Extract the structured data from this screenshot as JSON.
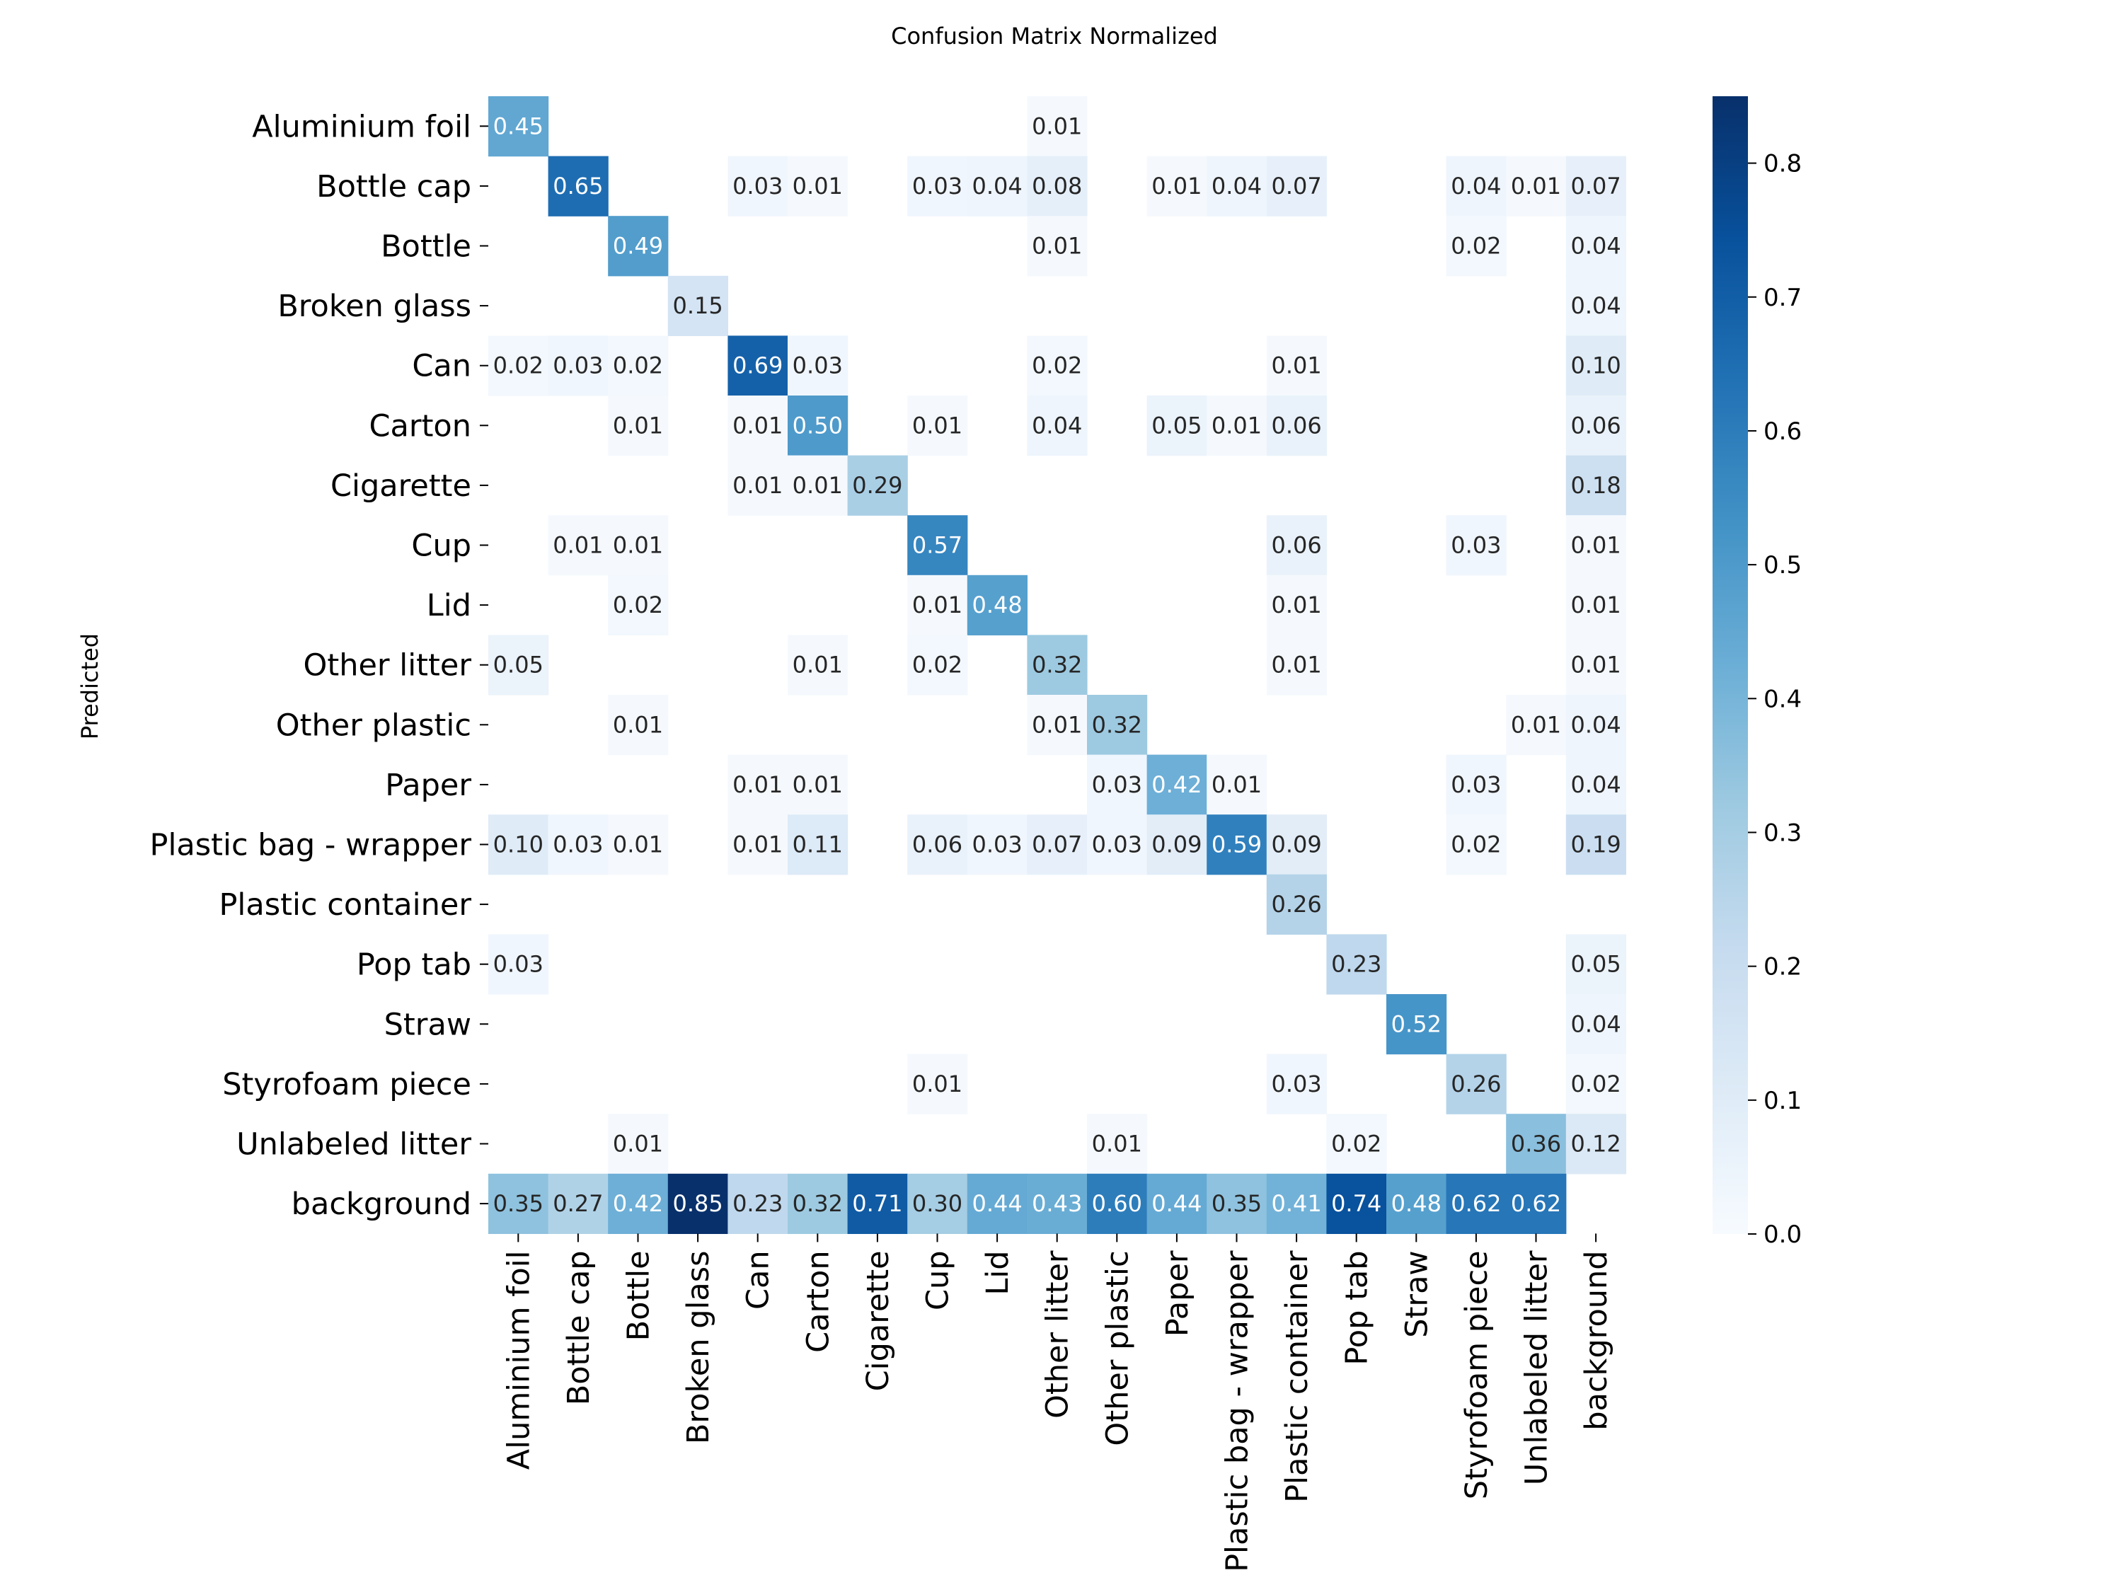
{
  "chart_data": {
    "type": "heatmap",
    "title": "Confusion Matrix Normalized",
    "xlabel": "",
    "ylabel": "Predicted",
    "labels": [
      "Aluminium foil",
      "Bottle cap",
      "Bottle",
      "Broken glass",
      "Can",
      "Carton",
      "Cigarette",
      "Cup",
      "Lid",
      "Other litter",
      "Other plastic",
      "Paper",
      "Plastic bag - wrapper",
      "Plastic container",
      "Pop tab",
      "Straw",
      "Styrofoam piece",
      "Unlabeled litter",
      "background"
    ],
    "cells": [
      {
        "r": 0,
        "c": 0,
        "v": 0.45
      },
      {
        "r": 0,
        "c": 9,
        "v": 0.01
      },
      {
        "r": 1,
        "c": 1,
        "v": 0.65
      },
      {
        "r": 1,
        "c": 4,
        "v": 0.03
      },
      {
        "r": 1,
        "c": 5,
        "v": 0.01
      },
      {
        "r": 1,
        "c": 7,
        "v": 0.03
      },
      {
        "r": 1,
        "c": 8,
        "v": 0.04
      },
      {
        "r": 1,
        "c": 9,
        "v": 0.08
      },
      {
        "r": 1,
        "c": 11,
        "v": 0.01
      },
      {
        "r": 1,
        "c": 12,
        "v": 0.04
      },
      {
        "r": 1,
        "c": 13,
        "v": 0.07
      },
      {
        "r": 1,
        "c": 16,
        "v": 0.04
      },
      {
        "r": 1,
        "c": 17,
        "v": 0.01
      },
      {
        "r": 1,
        "c": 18,
        "v": 0.07
      },
      {
        "r": 2,
        "c": 2,
        "v": 0.49
      },
      {
        "r": 2,
        "c": 9,
        "v": 0.01
      },
      {
        "r": 2,
        "c": 16,
        "v": 0.02
      },
      {
        "r": 2,
        "c": 18,
        "v": 0.04
      },
      {
        "r": 3,
        "c": 3,
        "v": 0.15
      },
      {
        "r": 3,
        "c": 18,
        "v": 0.04
      },
      {
        "r": 4,
        "c": 0,
        "v": 0.02
      },
      {
        "r": 4,
        "c": 1,
        "v": 0.03
      },
      {
        "r": 4,
        "c": 2,
        "v": 0.02
      },
      {
        "r": 4,
        "c": 4,
        "v": 0.69
      },
      {
        "r": 4,
        "c": 5,
        "v": 0.03
      },
      {
        "r": 4,
        "c": 9,
        "v": 0.02
      },
      {
        "r": 4,
        "c": 13,
        "v": 0.01
      },
      {
        "r": 4,
        "c": 18,
        "v": 0.1
      },
      {
        "r": 5,
        "c": 2,
        "v": 0.01
      },
      {
        "r": 5,
        "c": 4,
        "v": 0.01
      },
      {
        "r": 5,
        "c": 5,
        "v": 0.5
      },
      {
        "r": 5,
        "c": 7,
        "v": 0.01
      },
      {
        "r": 5,
        "c": 9,
        "v": 0.04
      },
      {
        "r": 5,
        "c": 11,
        "v": 0.05
      },
      {
        "r": 5,
        "c": 12,
        "v": 0.01
      },
      {
        "r": 5,
        "c": 13,
        "v": 0.06
      },
      {
        "r": 5,
        "c": 18,
        "v": 0.06
      },
      {
        "r": 6,
        "c": 4,
        "v": 0.01
      },
      {
        "r": 6,
        "c": 5,
        "v": 0.01
      },
      {
        "r": 6,
        "c": 6,
        "v": 0.29
      },
      {
        "r": 6,
        "c": 18,
        "v": 0.18
      },
      {
        "r": 7,
        "c": 1,
        "v": 0.01
      },
      {
        "r": 7,
        "c": 2,
        "v": 0.01
      },
      {
        "r": 7,
        "c": 7,
        "v": 0.57
      },
      {
        "r": 7,
        "c": 13,
        "v": 0.06
      },
      {
        "r": 7,
        "c": 16,
        "v": 0.03
      },
      {
        "r": 7,
        "c": 18,
        "v": 0.01
      },
      {
        "r": 8,
        "c": 2,
        "v": 0.02
      },
      {
        "r": 8,
        "c": 7,
        "v": 0.01
      },
      {
        "r": 8,
        "c": 8,
        "v": 0.48
      },
      {
        "r": 8,
        "c": 13,
        "v": 0.01
      },
      {
        "r": 8,
        "c": 18,
        "v": 0.01
      },
      {
        "r": 9,
        "c": 0,
        "v": 0.05
      },
      {
        "r": 9,
        "c": 5,
        "v": 0.01
      },
      {
        "r": 9,
        "c": 7,
        "v": 0.02
      },
      {
        "r": 9,
        "c": 9,
        "v": 0.32
      },
      {
        "r": 9,
        "c": 13,
        "v": 0.01
      },
      {
        "r": 9,
        "c": 18,
        "v": 0.01
      },
      {
        "r": 10,
        "c": 2,
        "v": 0.01
      },
      {
        "r": 10,
        "c": 9,
        "v": 0.01
      },
      {
        "r": 10,
        "c": 10,
        "v": 0.32
      },
      {
        "r": 10,
        "c": 17,
        "v": 0.01
      },
      {
        "r": 10,
        "c": 18,
        "v": 0.04
      },
      {
        "r": 11,
        "c": 4,
        "v": 0.01
      },
      {
        "r": 11,
        "c": 5,
        "v": 0.01
      },
      {
        "r": 11,
        "c": 10,
        "v": 0.03
      },
      {
        "r": 11,
        "c": 11,
        "v": 0.42
      },
      {
        "r": 11,
        "c": 12,
        "v": 0.01
      },
      {
        "r": 11,
        "c": 16,
        "v": 0.03
      },
      {
        "r": 11,
        "c": 18,
        "v": 0.04
      },
      {
        "r": 12,
        "c": 0,
        "v": 0.1
      },
      {
        "r": 12,
        "c": 1,
        "v": 0.03
      },
      {
        "r": 12,
        "c": 2,
        "v": 0.01
      },
      {
        "r": 12,
        "c": 4,
        "v": 0.01
      },
      {
        "r": 12,
        "c": 5,
        "v": 0.11
      },
      {
        "r": 12,
        "c": 7,
        "v": 0.06
      },
      {
        "r": 12,
        "c": 8,
        "v": 0.03
      },
      {
        "r": 12,
        "c": 9,
        "v": 0.07
      },
      {
        "r": 12,
        "c": 10,
        "v": 0.03
      },
      {
        "r": 12,
        "c": 11,
        "v": 0.09
      },
      {
        "r": 12,
        "c": 12,
        "v": 0.59
      },
      {
        "r": 12,
        "c": 13,
        "v": 0.09
      },
      {
        "r": 12,
        "c": 16,
        "v": 0.02
      },
      {
        "r": 12,
        "c": 18,
        "v": 0.19
      },
      {
        "r": 13,
        "c": 13,
        "v": 0.26
      },
      {
        "r": 14,
        "c": 0,
        "v": 0.03
      },
      {
        "r": 14,
        "c": 14,
        "v": 0.23
      },
      {
        "r": 14,
        "c": 18,
        "v": 0.05
      },
      {
        "r": 15,
        "c": 15,
        "v": 0.52
      },
      {
        "r": 15,
        "c": 18,
        "v": 0.04
      },
      {
        "r": 16,
        "c": 7,
        "v": 0.01
      },
      {
        "r": 16,
        "c": 13,
        "v": 0.03
      },
      {
        "r": 16,
        "c": 16,
        "v": 0.26
      },
      {
        "r": 16,
        "c": 18,
        "v": 0.02
      },
      {
        "r": 17,
        "c": 2,
        "v": 0.01
      },
      {
        "r": 17,
        "c": 10,
        "v": 0.01
      },
      {
        "r": 17,
        "c": 14,
        "v": 0.02
      },
      {
        "r": 17,
        "c": 17,
        "v": 0.36
      },
      {
        "r": 17,
        "c": 18,
        "v": 0.12
      },
      {
        "r": 18,
        "c": 0,
        "v": 0.35
      },
      {
        "r": 18,
        "c": 1,
        "v": 0.27
      },
      {
        "r": 18,
        "c": 2,
        "v": 0.42
      },
      {
        "r": 18,
        "c": 3,
        "v": 0.85
      },
      {
        "r": 18,
        "c": 4,
        "v": 0.23
      },
      {
        "r": 18,
        "c": 5,
        "v": 0.32
      },
      {
        "r": 18,
        "c": 6,
        "v": 0.71
      },
      {
        "r": 18,
        "c": 7,
        "v": 0.3
      },
      {
        "r": 18,
        "c": 8,
        "v": 0.44
      },
      {
        "r": 18,
        "c": 9,
        "v": 0.43
      },
      {
        "r": 18,
        "c": 10,
        "v": 0.6
      },
      {
        "r": 18,
        "c": 11,
        "v": 0.44
      },
      {
        "r": 18,
        "c": 12,
        "v": 0.35
      },
      {
        "r": 18,
        "c": 13,
        "v": 0.41
      },
      {
        "r": 18,
        "c": 14,
        "v": 0.74
      },
      {
        "r": 18,
        "c": 15,
        "v": 0.48
      },
      {
        "r": 18,
        "c": 16,
        "v": 0.62
      },
      {
        "r": 18,
        "c": 17,
        "v": 0.62
      }
    ],
    "colorbar": {
      "min": 0.0,
      "max": 0.85,
      "ticks": [
        "0.0",
        "0.1",
        "0.2",
        "0.3",
        "0.4",
        "0.5",
        "0.6",
        "0.7",
        "0.8"
      ],
      "colormap": "Blues"
    },
    "grid": false,
    "legend": "colorbar-right"
  }
}
